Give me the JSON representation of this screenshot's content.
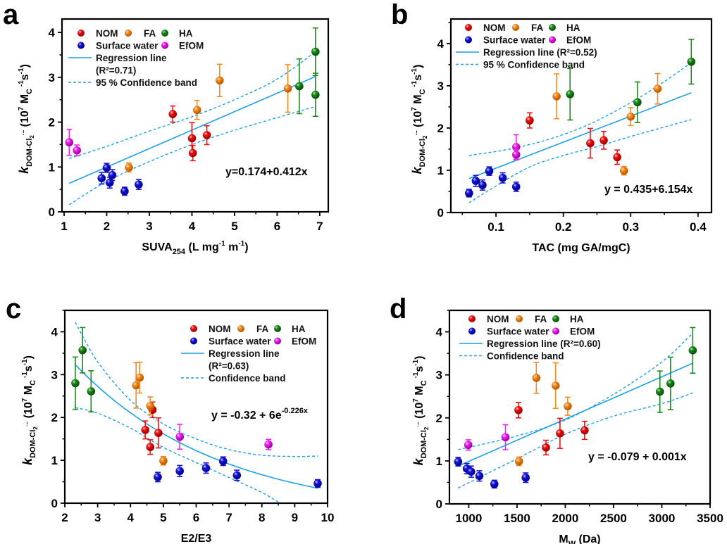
{
  "figure": {
    "series_colors": {
      "NOM": "#ee1111",
      "FA": "#f58a1f",
      "HA": "#1a8a1a",
      "Surface water": "#1414d8",
      "EfOM": "#ee22ee"
    },
    "fit_color": "#1ba1e8",
    "ylabel": {
      "k": "k",
      "sub": "DOM-Cl",
      "sub2": "2",
      "sup_radical": "·−",
      "unit_open": " (10",
      "exp": "7",
      "unit_mid": " M",
      "unit_sub": "C",
      "exp2": "-1",
      "unit_s": "s",
      "exp3": "-1",
      "unit_close": ")"
    },
    "legend_series": [
      "NOM",
      "FA",
      "HA",
      "Surface water",
      "EfOM"
    ]
  },
  "chart_data": [
    {
      "panel": "a",
      "type": "scatter",
      "xlabel": "SUVA254 (L mg-1 m-1)",
      "xlabel_parts": {
        "main": "SUVA",
        "sub": "254",
        "rest1": " (L mg",
        "sup1": "-1",
        "rest2": " m",
        "sup2": "-1",
        "rest3": ")"
      },
      "ylabel": "k DOM-Cl2 (10^7 MC^-1 s^-1)",
      "xlim": [
        0.95,
        7.2
      ],
      "ylim": [
        0,
        4.3
      ],
      "xticks": [
        1,
        2,
        3,
        4,
        5,
        6,
        7
      ],
      "xtick_labels": [
        "1",
        "2",
        "3",
        "4",
        "5",
        "6",
        "7"
      ],
      "yticks": [
        0,
        1,
        2,
        3,
        4
      ],
      "ytick_labels": [
        "0",
        "1",
        "2",
        "3",
        "4"
      ],
      "legend": {
        "placement": "top-left",
        "regression": "Regression line",
        "r2": "(R²=0.71)",
        "band": "95 % Confidence band"
      },
      "equation": "y=0.174+0.412x",
      "fit": {
        "kind": "linear",
        "intercept": 0.174,
        "slope": 0.412,
        "x_range": [
          1.12,
          6.9
        ],
        "r2": 0.71
      },
      "band_upper": [
        [
          1.12,
          1.19
        ],
        [
          2,
          1.46
        ],
        [
          3,
          1.8
        ],
        [
          4,
          2.12
        ],
        [
          5,
          2.5
        ],
        [
          6,
          2.96
        ],
        [
          6.9,
          3.57
        ]
      ],
      "band_lower": [
        [
          1.12,
          0.16
        ],
        [
          2,
          0.68
        ],
        [
          3,
          1.12
        ],
        [
          4,
          1.5
        ],
        [
          5,
          1.82
        ],
        [
          6,
          2.1
        ],
        [
          6.9,
          2.35
        ]
      ],
      "series": [
        {
          "name": "NOM",
          "points": [
            {
              "x": 3.55,
              "y": 2.18,
              "err": 0.18
            },
            {
              "x": 4.0,
              "y": 1.64,
              "err": 0.35
            },
            {
              "x": 4.02,
              "y": 1.31,
              "err": 0.17
            },
            {
              "x": 4.35,
              "y": 1.71,
              "err": 0.21
            }
          ]
        },
        {
          "name": "FA",
          "points": [
            {
              "x": 2.52,
              "y": 0.99,
              "err": 0.1
            },
            {
              "x": 4.12,
              "y": 2.27,
              "err": 0.21
            },
            {
              "x": 4.65,
              "y": 2.93,
              "err": 0.36
            },
            {
              "x": 6.25,
              "y": 2.75,
              "err": 0.53
            }
          ]
        },
        {
          "name": "HA",
          "points": [
            {
              "x": 6.52,
              "y": 2.8,
              "err": 0.61
            },
            {
              "x": 6.9,
              "y": 3.57,
              "err": 0.53
            },
            {
              "x": 6.9,
              "y": 2.61,
              "err": 0.48
            }
          ]
        },
        {
          "name": "Surface water",
          "points": [
            {
              "x": 2.0,
              "y": 0.98,
              "err": 0.1
            },
            {
              "x": 1.88,
              "y": 0.75,
              "err": 0.13
            },
            {
              "x": 2.07,
              "y": 0.65,
              "err": 0.12
            },
            {
              "x": 2.13,
              "y": 0.82,
              "err": 0.12
            },
            {
              "x": 2.42,
              "y": 0.46,
              "err": 0.09
            },
            {
              "x": 2.75,
              "y": 0.61,
              "err": 0.11
            }
          ]
        },
        {
          "name": "EfOM",
          "points": [
            {
              "x": 1.12,
              "y": 1.55,
              "err": 0.29
            },
            {
              "x": 1.3,
              "y": 1.37,
              "err": 0.12
            }
          ]
        }
      ]
    },
    {
      "panel": "b",
      "type": "scatter",
      "xlabel": "TAC (mg GA/mgC)",
      "xlabel_parts": {
        "main": "TAC (mg GA/mgC)"
      },
      "ylabel": "k DOM-Cl2 (10^7 MC^-1 s^-1)",
      "xlim": [
        0.033,
        0.42
      ],
      "ylim": [
        0,
        4.58
      ],
      "xticks": [
        0.1,
        0.2,
        0.3,
        0.4
      ],
      "xtick_labels": [
        "0.1",
        "0.2",
        "0.3",
        "0.4"
      ],
      "yticks": [
        0,
        1,
        2,
        3,
        4
      ],
      "ytick_labels": [
        "0",
        "1",
        "2",
        "3",
        "4"
      ],
      "legend": {
        "placement": "top-left",
        "regression": "Regression line  (R²=0.52)",
        "band": "95 % Confidence band"
      },
      "equation": "y = 0.435+6.154x",
      "fit": {
        "kind": "linear",
        "intercept": 0.435,
        "slope": 6.154,
        "x_range": [
          0.06,
          0.39
        ],
        "r2": 0.52
      },
      "band_upper": [
        [
          0.06,
          1.35
        ],
        [
          0.12,
          1.5
        ],
        [
          0.18,
          1.74
        ],
        [
          0.24,
          2.1
        ],
        [
          0.3,
          2.6
        ],
        [
          0.35,
          3.1
        ],
        [
          0.39,
          3.55
        ]
      ],
      "band_lower": [
        [
          0.06,
          0.23
        ],
        [
          0.1,
          0.63
        ],
        [
          0.15,
          1.08
        ],
        [
          0.2,
          1.35
        ],
        [
          0.25,
          1.56
        ],
        [
          0.3,
          1.8
        ],
        [
          0.39,
          2.2
        ]
      ],
      "series": [
        {
          "name": "NOM",
          "points": [
            {
              "x": 0.15,
              "y": 2.18,
              "err": 0.18
            },
            {
              "x": 0.24,
              "y": 1.64,
              "err": 0.35
            },
            {
              "x": 0.26,
              "y": 1.71,
              "err": 0.21
            },
            {
              "x": 0.28,
              "y": 1.31,
              "err": 0.17
            }
          ]
        },
        {
          "name": "FA",
          "points": [
            {
              "x": 0.19,
              "y": 2.75,
              "err": 0.53
            },
            {
              "x": 0.3,
              "y": 2.27,
              "err": 0.21
            },
            {
              "x": 0.34,
              "y": 2.93,
              "err": 0.36
            },
            {
              "x": 0.29,
              "y": 0.99,
              "err": 0.1
            }
          ]
        },
        {
          "name": "HA",
          "points": [
            {
              "x": 0.21,
              "y": 2.8,
              "err": 0.61
            },
            {
              "x": 0.31,
              "y": 2.61,
              "err": 0.48
            },
            {
              "x": 0.39,
              "y": 3.57,
              "err": 0.53
            }
          ]
        },
        {
          "name": "Surface water",
          "points": [
            {
              "x": 0.06,
              "y": 0.46,
              "err": 0.09
            },
            {
              "x": 0.07,
              "y": 0.75,
              "err": 0.13
            },
            {
              "x": 0.08,
              "y": 0.65,
              "err": 0.12
            },
            {
              "x": 0.09,
              "y": 0.98,
              "err": 0.1
            },
            {
              "x": 0.11,
              "y": 0.82,
              "err": 0.12
            },
            {
              "x": 0.13,
              "y": 0.61,
              "err": 0.11
            }
          ]
        },
        {
          "name": "EfOM",
          "points": [
            {
              "x": 0.13,
              "y": 1.55,
              "err": 0.29
            },
            {
              "x": 0.13,
              "y": 1.37,
              "err": 0.12
            }
          ]
        }
      ]
    },
    {
      "panel": "c",
      "type": "scatter",
      "xlabel": "E2/E3",
      "xlabel_parts": {
        "main": "E2/E3"
      },
      "ylabel": "k DOM-Cl2 (10^7 MC^-1 s^-1)",
      "xlim": [
        2,
        10
      ],
      "ylim": [
        0,
        4.5
      ],
      "xticks": [
        2,
        3,
        4,
        5,
        6,
        7,
        8,
        9,
        10
      ],
      "xtick_labels": [
        "2",
        "3",
        "4",
        "5",
        "6",
        "7",
        "8",
        "9",
        "10"
      ],
      "yticks": [
        0,
        1,
        2,
        3,
        4
      ],
      "ytick_labels": [
        "0",
        "1",
        "2",
        "3",
        "4"
      ],
      "legend": {
        "placement": "top-right",
        "regression": "Regression line",
        "r2": "(R²=0.63)",
        "band": "Confidence band"
      },
      "equation": "y = -0.32 + 6e",
      "equation_exp": "-0.226x",
      "fit": {
        "kind": "exponential",
        "a": -0.32,
        "b": 6,
        "k": -0.226,
        "x_range": [
          2.32,
          9.7
        ],
        "r2": 0.63
      },
      "band_upper": [
        [
          2.32,
          4.22
        ],
        [
          3,
          3.3
        ],
        [
          4,
          2.4
        ],
        [
          5,
          1.85
        ],
        [
          6,
          1.5
        ],
        [
          7,
          1.25
        ],
        [
          8,
          1.12
        ],
        [
          9,
          1.09
        ],
        [
          9.7,
          1.1
        ]
      ],
      "band_lower": [
        [
          2.32,
          2.23
        ],
        [
          3,
          2.1
        ],
        [
          4,
          1.75
        ],
        [
          5,
          1.3
        ],
        [
          6,
          0.95
        ],
        [
          7,
          0.6
        ],
        [
          8,
          0.25
        ],
        [
          8.55,
          0
        ]
      ],
      "series": [
        {
          "name": "NOM",
          "points": [
            {
              "x": 4.45,
              "y": 1.71,
              "err": 0.21
            },
            {
              "x": 4.6,
              "y": 1.31,
              "err": 0.17
            },
            {
              "x": 4.67,
              "y": 2.18,
              "err": 0.18
            },
            {
              "x": 4.85,
              "y": 1.64,
              "err": 0.35
            }
          ]
        },
        {
          "name": "FA",
          "points": [
            {
              "x": 4.17,
              "y": 2.75,
              "err": 0.53
            },
            {
              "x": 4.28,
              "y": 2.93,
              "err": 0.36
            },
            {
              "x": 4.6,
              "y": 2.27,
              "err": 0.21
            },
            {
              "x": 5.0,
              "y": 0.99,
              "err": 0.1
            }
          ]
        },
        {
          "name": "HA",
          "points": [
            {
              "x": 2.32,
              "y": 2.8,
              "err": 0.61
            },
            {
              "x": 2.54,
              "y": 3.57,
              "err": 0.53
            },
            {
              "x": 2.8,
              "y": 2.61,
              "err": 0.48
            }
          ]
        },
        {
          "name": "Surface water",
          "points": [
            {
              "x": 4.83,
              "y": 0.61,
              "err": 0.11
            },
            {
              "x": 5.5,
              "y": 0.75,
              "err": 0.13
            },
            {
              "x": 6.3,
              "y": 0.82,
              "err": 0.12
            },
            {
              "x": 6.82,
              "y": 0.98,
              "err": 0.1
            },
            {
              "x": 7.24,
              "y": 0.65,
              "err": 0.12
            },
            {
              "x": 9.7,
              "y": 0.46,
              "err": 0.09
            }
          ]
        },
        {
          "name": "EfOM",
          "points": [
            {
              "x": 5.5,
              "y": 1.55,
              "err": 0.29
            },
            {
              "x": 8.2,
              "y": 1.37,
              "err": 0.12
            }
          ]
        }
      ]
    },
    {
      "panel": "d",
      "type": "scatter",
      "xlabel": "MW (Da)",
      "xlabel_parts": {
        "main": "M",
        "sub": "W",
        "rest1": " (Da)"
      },
      "ylabel": "k DOM-Cl2 (10^7 MC^-1 s^-1)",
      "xlim": [
        800,
        3500
      ],
      "ylim": [
        0,
        4.5
      ],
      "xticks": [
        1000,
        1500,
        2000,
        2500,
        3000,
        3500
      ],
      "xtick_labels": [
        "1000",
        "1500",
        "2000",
        "2500",
        "3000",
        "3500"
      ],
      "yticks": [
        0,
        1,
        2,
        3,
        4
      ],
      "ytick_labels": [
        "0",
        "1",
        "2",
        "3",
        "4"
      ],
      "legend": {
        "placement": "top-left",
        "regression": "Regression line (R²=0.60)",
        "band": "Confidence band"
      },
      "equation": "y = -0.079 + 0.001x",
      "fit": {
        "kind": "linear_points",
        "points": [
          [
            890,
            0.88
          ],
          [
            3320,
            3.27
          ]
        ],
        "intercept": -0.079,
        "slope": 0.001,
        "r2": 0.6
      },
      "band_upper": [
        [
          890,
          1.26
        ],
        [
          1500,
          1.58
        ],
        [
          2000,
          1.95
        ],
        [
          2500,
          2.55
        ],
        [
          3000,
          3.3
        ],
        [
          3320,
          3.97
        ]
      ],
      "band_lower": [
        [
          890,
          0.37
        ],
        [
          1500,
          1.05
        ],
        [
          2000,
          1.62
        ],
        [
          2500,
          2.04
        ],
        [
          3000,
          2.33
        ],
        [
          3320,
          2.58
        ]
      ],
      "series": [
        {
          "name": "NOM",
          "points": [
            {
              "x": 1515,
              "y": 2.18,
              "err": 0.18
            },
            {
              "x": 1800,
              "y": 1.31,
              "err": 0.17
            },
            {
              "x": 1945,
              "y": 1.64,
              "err": 0.35
            },
            {
              "x": 2200,
              "y": 1.71,
              "err": 0.21
            }
          ]
        },
        {
          "name": "FA",
          "points": [
            {
              "x": 1520,
              "y": 0.99,
              "err": 0.1
            },
            {
              "x": 1700,
              "y": 2.93,
              "err": 0.36
            },
            {
              "x": 1900,
              "y": 2.75,
              "err": 0.53
            },
            {
              "x": 2025,
              "y": 2.27,
              "err": 0.21
            }
          ]
        },
        {
          "name": "HA",
          "points": [
            {
              "x": 2980,
              "y": 2.61,
              "err": 0.48
            },
            {
              "x": 3090,
              "y": 2.8,
              "err": 0.61
            },
            {
              "x": 3320,
              "y": 3.57,
              "err": 0.53
            }
          ]
        },
        {
          "name": "Surface water",
          "points": [
            {
              "x": 890,
              "y": 0.98,
              "err": 0.1
            },
            {
              "x": 980,
              "y": 0.82,
              "err": 0.12
            },
            {
              "x": 1025,
              "y": 0.75,
              "err": 0.13
            },
            {
              "x": 1110,
              "y": 0.65,
              "err": 0.12
            },
            {
              "x": 1265,
              "y": 0.46,
              "err": 0.09
            },
            {
              "x": 1590,
              "y": 0.61,
              "err": 0.11
            }
          ]
        },
        {
          "name": "EfOM",
          "points": [
            {
              "x": 995,
              "y": 1.37,
              "err": 0.12
            },
            {
              "x": 1380,
              "y": 1.55,
              "err": 0.29
            }
          ]
        }
      ]
    }
  ]
}
